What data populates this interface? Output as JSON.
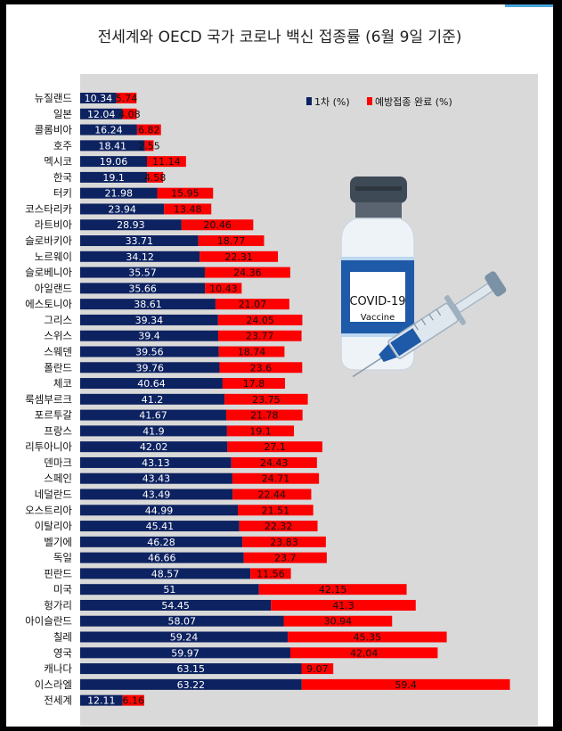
{
  "chart_data": {
    "type": "bar",
    "orientation": "horizontal",
    "stacked": true,
    "title": "전세계와 OECD 국가 코로나 백신 접종률 (6월 9일 기준)",
    "categories": [
      "뉴질랜드",
      "일본",
      "콜롬비아",
      "호주",
      "멕시코",
      "한국",
      "터키",
      "코스타리카",
      "라트비아",
      "슬로바키아",
      "노르웨이",
      "슬로베니아",
      "아일랜드",
      "에스토니아",
      "그리스",
      "스위스",
      "스웨덴",
      "폴란드",
      "체코",
      "룩셈부르크",
      "포르투갈",
      "프랑스",
      "리투아니아",
      "덴마크",
      "스페인",
      "네덜란드",
      "오스트리아",
      "이탈리아",
      "벨기에",
      "독일",
      "핀란드",
      "미국",
      "헝가리",
      "아이슬란드",
      "칠레",
      "영국",
      "캐나다",
      "이스라엘",
      "전세계"
    ],
    "series": [
      {
        "name": "1차 (%)",
        "color": "#0d2260",
        "values": [
          10.34,
          12.04,
          16.24,
          18.41,
          19.06,
          19.1,
          21.98,
          23.94,
          28.93,
          33.71,
          34.12,
          35.57,
          35.66,
          38.61,
          39.34,
          39.4,
          39.56,
          39.76,
          40.64,
          41.2,
          41.67,
          41.9,
          42.02,
          43.13,
          43.43,
          43.49,
          44.99,
          45.41,
          46.28,
          46.66,
          48.57,
          51,
          54.45,
          58.07,
          59.24,
          59.97,
          63.15,
          63.22,
          12.11
        ]
      },
      {
        "name": "예방접종 완료 (%)",
        "color": "#ff0000",
        "values": [
          5.74,
          4.08,
          6.82,
          2.55,
          11.14,
          4.58,
          15.95,
          13.48,
          20.46,
          18.77,
          22.31,
          24.36,
          10.43,
          21.07,
          24.05,
          23.77,
          18.74,
          23.6,
          17.8,
          23.75,
          21.78,
          19.1,
          27.1,
          24.43,
          24.71,
          22.44,
          21.51,
          22.32,
          23.83,
          23.7,
          11.56,
          42.15,
          41.3,
          30.94,
          45.35,
          42.04,
          9.07,
          59.4,
          6.16
        ]
      }
    ],
    "value_labels": {
      "first": [
        "10.34",
        "12.04",
        "16.24",
        "18.41",
        "19.06",
        "19.1",
        "21.98",
        "23.94",
        "28.93",
        "33.71",
        "34.12",
        "35.57",
        "35.66",
        "38.61",
        "39.34",
        "39.4",
        "39.56",
        "39.76",
        "40.64",
        "41.2",
        "41.67",
        "41.9",
        "42.02",
        "43.13",
        "43.43",
        "43.49",
        "44.99",
        "45.41",
        "46.28",
        "46.66",
        "48.57",
        "51",
        "54.45",
        "58.07",
        "59.24",
        "59.97",
        "63.15",
        "63.22",
        "12.11"
      ],
      "complete": [
        "5.74",
        "4.08",
        "6.82",
        "2.55",
        "11.14",
        "4.58",
        "15.95",
        "13.48",
        "20.46",
        "18.77",
        "22.31",
        "24.36",
        "10.43",
        "21.07",
        "24.05",
        "23.77",
        "18.74",
        "23.6",
        "17.8",
        "23.75",
        "21.78",
        "19.1",
        "27.1",
        "24.43",
        "24.71",
        "22.44",
        "21.51",
        "22.32",
        "23.83",
        "23.7",
        "11.56",
        "42.15",
        "41.3",
        "30.94",
        "45.35",
        "42.04",
        "9.07",
        "59.4",
        "6.16"
      ]
    },
    "legend": {
      "position": "top-right",
      "items": [
        "1차 (%)",
        "예방접종 완료 (%)"
      ]
    },
    "xlim": [
      0,
      130
    ],
    "grid": false
  },
  "illustration": {
    "vial_label_line1": "COVID-19",
    "vial_label_line2": "Vaccine"
  },
  "colors": {
    "first": "#0d2260",
    "complete": "#ff0000",
    "plot_bg": "#d9d9d9"
  }
}
